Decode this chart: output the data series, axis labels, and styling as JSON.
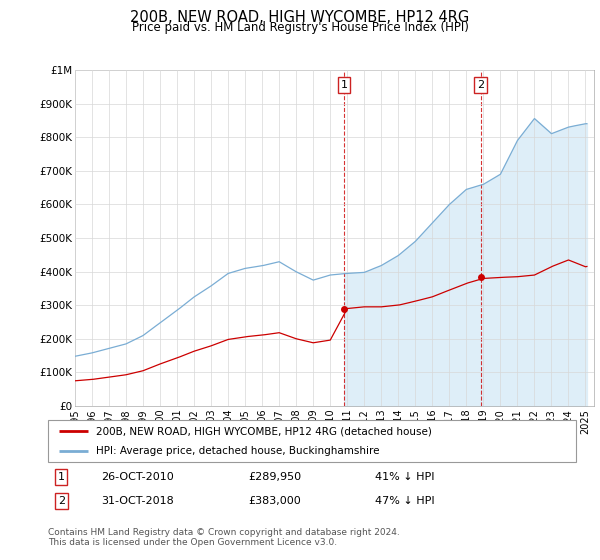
{
  "title": "200B, NEW ROAD, HIGH WYCOMBE, HP12 4RG",
  "subtitle": "Price paid vs. HM Land Registry's House Price Index (HPI)",
  "property_label": "200B, NEW ROAD, HIGH WYCOMBE, HP12 4RG (detached house)",
  "hpi_label": "HPI: Average price, detached house, Buckinghamshire",
  "sale1_date": "26-OCT-2010",
  "sale1_price": 289950,
  "sale1_year": 2010.82,
  "sale1_hpi_text": "41% ↓ HPI",
  "sale2_date": "31-OCT-2018",
  "sale2_price": 383000,
  "sale2_year": 2018.83,
  "sale2_hpi_text": "47% ↓ HPI",
  "footer": "Contains HM Land Registry data © Crown copyright and database right 2024.\nThis data is licensed under the Open Government Licence v3.0.",
  "property_color": "#cc0000",
  "hpi_color": "#7aadd4",
  "hpi_fill_color": "#deeef8",
  "background_color": "#ffffff",
  "grid_color": "#d8d8d8",
  "ylim": [
    0,
    1000000
  ],
  "yticks": [
    0,
    100000,
    200000,
    300000,
    400000,
    500000,
    600000,
    700000,
    800000,
    900000,
    1000000
  ],
  "ytick_labels": [
    "£0",
    "£100K",
    "£200K",
    "£300K",
    "£400K",
    "£500K",
    "£600K",
    "£700K",
    "£800K",
    "£900K",
    "£1M"
  ],
  "xlim": [
    1995.0,
    2025.5
  ],
  "xtick_years": [
    1995,
    1996,
    1997,
    1998,
    1999,
    2000,
    2001,
    2002,
    2003,
    2004,
    2005,
    2006,
    2007,
    2008,
    2009,
    2010,
    2011,
    2012,
    2013,
    2014,
    2015,
    2016,
    2017,
    2018,
    2019,
    2020,
    2021,
    2022,
    2023,
    2024,
    2025
  ]
}
